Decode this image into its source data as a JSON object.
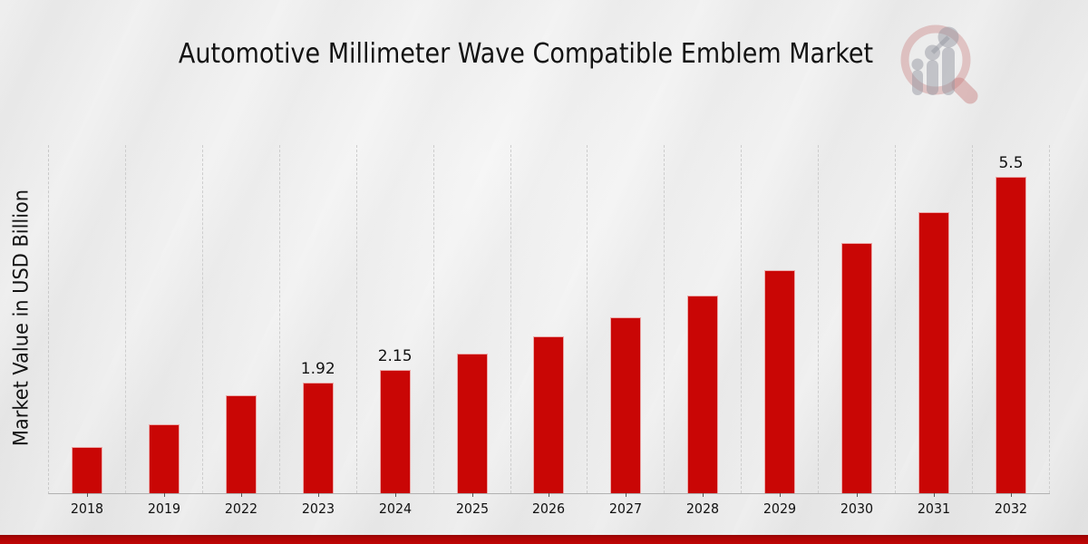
{
  "chart_data": {
    "type": "bar",
    "title": "Automotive Millimeter Wave Compatible Emblem Market",
    "ylabel": "Market Value in USD Billion",
    "xlabel": "",
    "categories": [
      "2018",
      "2019",
      "2022",
      "2023",
      "2024",
      "2025",
      "2026",
      "2027",
      "2028",
      "2029",
      "2030",
      "2031",
      "2032"
    ],
    "values": [
      0.8,
      1.2,
      1.7,
      1.92,
      2.15,
      2.42,
      2.72,
      3.06,
      3.44,
      3.87,
      4.35,
      4.89,
      5.5
    ],
    "point_labels": [
      "",
      "",
      "",
      "1.92",
      "2.15",
      "",
      "",
      "",
      "",
      "",
      "",
      "",
      "5.5"
    ],
    "ylim": [
      0,
      6.05
    ],
    "bar_color": "#c90605",
    "grid": "vertical dashed category separators, no horizontal gridlines, no y tick labels",
    "legend": "none"
  },
  "branding": {
    "logo_name": "magnifier-bar-chart-logo",
    "accent_band_color": "#b30404"
  }
}
